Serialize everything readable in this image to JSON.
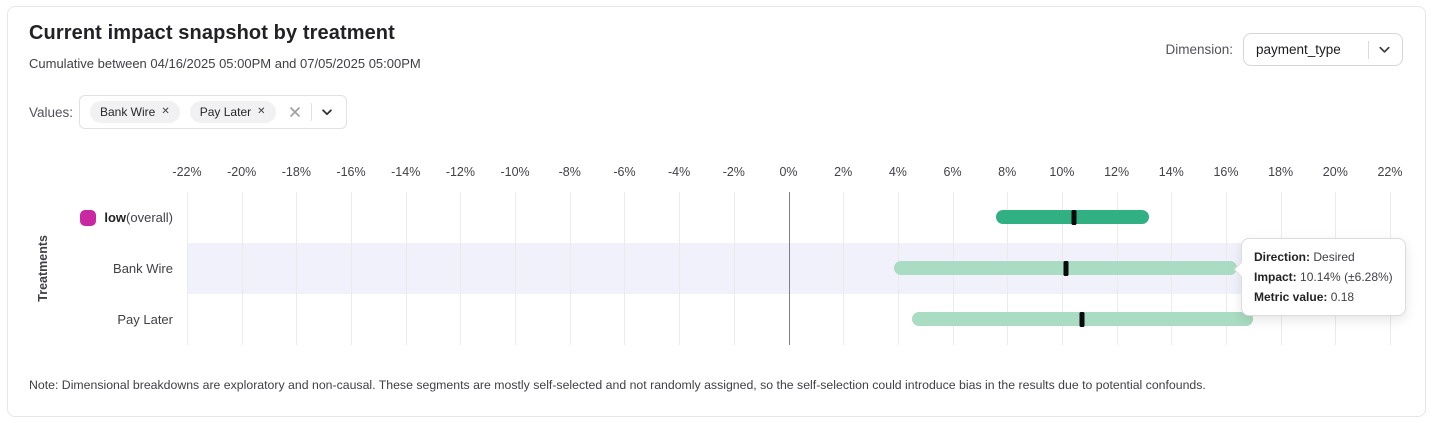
{
  "header": {
    "title": "Current impact snapshot by treatment",
    "subtitle": "Cumulative between 04/16/2025 05:00PM and 07/05/2025 05:00PM",
    "dimension_label": "Dimension:",
    "dimension_value": "payment_type"
  },
  "filters": {
    "values_label": "Values:",
    "chips": [
      "Bank Wire",
      "Pay Later"
    ],
    "chip_remove_glyph": "✕"
  },
  "chart_data": {
    "type": "range-bar",
    "title": "Current impact snapshot by treatment",
    "xlabel": "",
    "ylabel": "Treatments",
    "axis": {
      "min": -22,
      "max": 22,
      "step": 2,
      "unit": "%"
    },
    "grid": true,
    "rows": [
      {
        "label": "low",
        "label_suffix": " (overall)",
        "label_bold": true,
        "swatch_color": "#ca27a2",
        "bar_color": "#31b183",
        "low": 7.6,
        "high": 13.2,
        "center": 10.45,
        "highlighted": false
      },
      {
        "label": "Bank Wire",
        "label_bold": false,
        "bar_color": "#a9dcc2",
        "low": 3.86,
        "high": 16.42,
        "center": 10.14,
        "highlighted": true
      },
      {
        "label": "Pay Later",
        "label_bold": false,
        "bar_color": "#a9dcc2",
        "low": 4.5,
        "high": 17.0,
        "center": 10.75,
        "highlighted": false
      }
    ],
    "colors": {
      "highlight_band": "#f0f1fb",
      "gridline": "#ebebee",
      "zero_line": "#7f7f86",
      "marker": "#0b0b0d"
    }
  },
  "tooltip": {
    "direction_label": "Direction:",
    "direction_value": "Desired",
    "impact_label": "Impact:",
    "impact_value": "10.14% (±6.28%)",
    "metric_label": "Metric value:",
    "metric_value": "0.18"
  },
  "note": "Note: Dimensional breakdowns are exploratory and non-causal. These segments are mostly self-selected and not randomly assigned, so the self-selection could introduce bias in the results due to potential confounds."
}
